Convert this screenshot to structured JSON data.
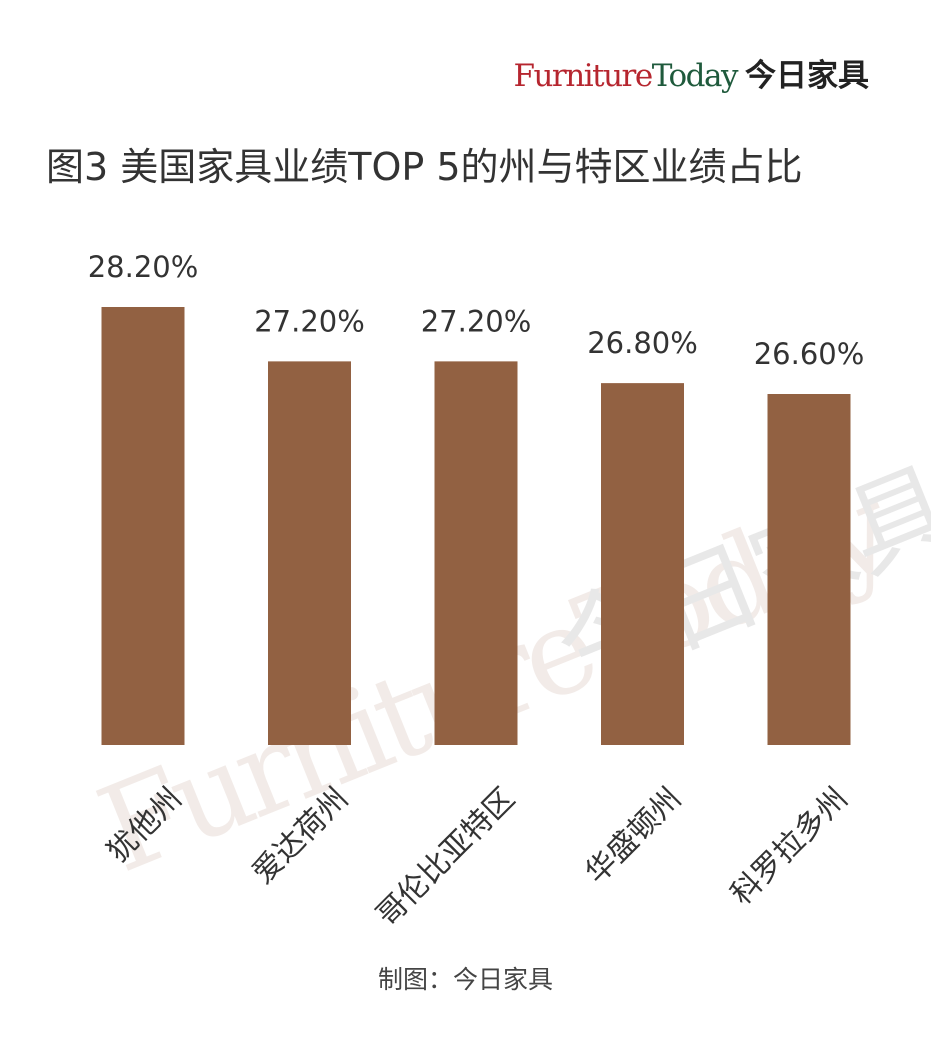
{
  "brand": {
    "latin_part1": "Furniture",
    "latin_part2": "Today",
    "cjk": "今日家具"
  },
  "title": "图3  美国家具业绩TOP 5的州与特区业绩占比",
  "credit": "制图：今日家具",
  "watermark": {
    "latin": "FurnitureToday",
    "cjk": "今日家具"
  },
  "colors": {
    "bar": "#926142",
    "brand_red": "#b6262f",
    "brand_green": "#1f5a3c"
  },
  "chart_data": {
    "type": "bar",
    "title": "图3  美国家具业绩TOP 5的州与特区业绩占比",
    "categories": [
      "犹他州",
      "爱达荷州",
      "哥伦比亚特区",
      "华盛顿州",
      "科罗拉多州"
    ],
    "values": [
      28.2,
      27.2,
      27.2,
      26.8,
      26.6
    ],
    "data_labels": [
      "28.20%",
      "27.20%",
      "27.20%",
      "26.80%",
      "26.60%"
    ],
    "xlabel": "",
    "ylabel": "",
    "ylim": [
      0,
      28.2
    ],
    "grid": false,
    "legend": "none"
  }
}
